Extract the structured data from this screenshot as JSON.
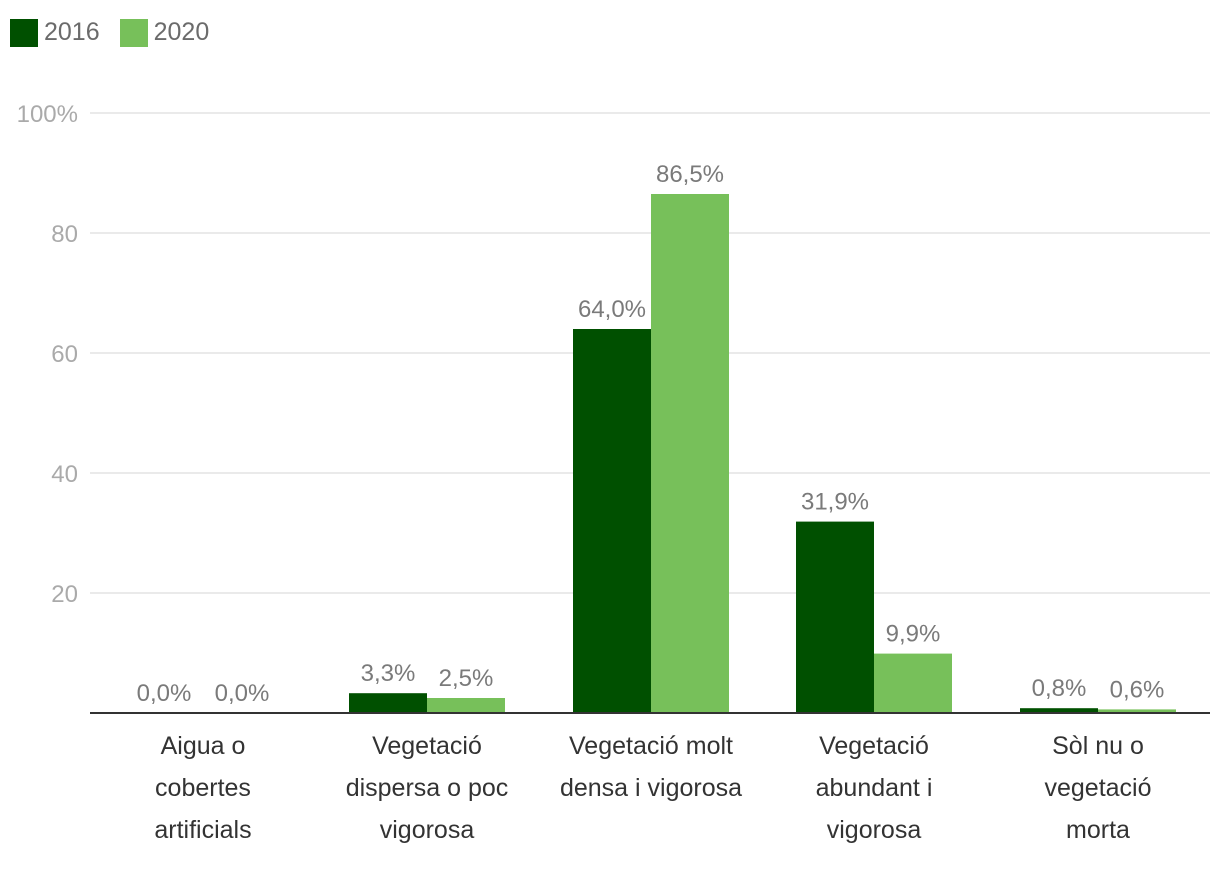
{
  "chart_data": {
    "type": "bar",
    "categories": [
      [
        "Aigua o",
        "cobertes",
        "artificials"
      ],
      [
        "Vegetació",
        "dispersa o poc",
        "vigorosa"
      ],
      [
        "Vegetació molt",
        "densa i vigorosa"
      ],
      [
        "Vegetació",
        "abundant i",
        "vigorosa"
      ],
      [
        "Sòl nu o",
        "vegetació",
        "morta"
      ]
    ],
    "series": [
      {
        "name": "2016",
        "color": "#005000",
        "values": [
          0.0,
          3.3,
          64.0,
          31.9,
          0.8
        ],
        "labels": [
          "0,0%",
          "3,3%",
          "64,0%",
          "31,9%",
          "0,8%"
        ]
      },
      {
        "name": "2020",
        "color": "#77c05a",
        "values": [
          0.0,
          2.5,
          86.5,
          9.9,
          0.6
        ],
        "labels": [
          "0,0%",
          "2,5%",
          "86,5%",
          "9,9%",
          "0,6%"
        ]
      }
    ],
    "ylim": [
      0,
      100
    ],
    "yticks": [
      {
        "value": 20,
        "label": "20"
      },
      {
        "value": 40,
        "label": "40"
      },
      {
        "value": 60,
        "label": "60"
      },
      {
        "value": 80,
        "label": "80"
      },
      {
        "value": 100,
        "label": "100%"
      }
    ],
    "grid": true,
    "legend": "top-left"
  }
}
